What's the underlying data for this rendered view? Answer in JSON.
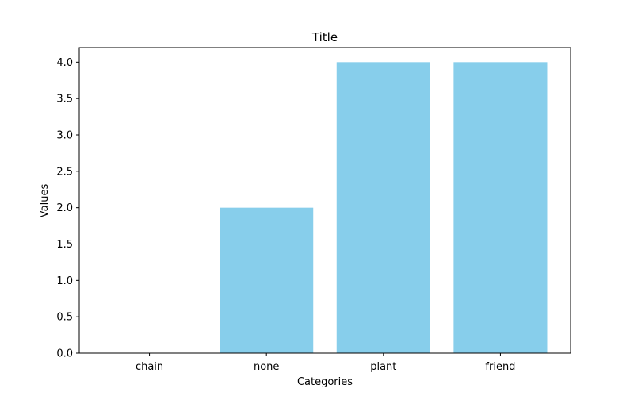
{
  "chart_data": {
    "type": "bar",
    "title": "Title",
    "xlabel": "Categories",
    "ylabel": "Values",
    "categories": [
      "chain",
      "none",
      "plant",
      "friend"
    ],
    "values": [
      0,
      2,
      4,
      4
    ],
    "ylim": [
      0,
      4.2
    ],
    "yticks": [
      "0.0",
      "0.5",
      "1.0",
      "1.5",
      "2.0",
      "2.5",
      "3.0",
      "3.5",
      "4.0"
    ],
    "grid": false,
    "bar_color": "#87CEEB"
  }
}
